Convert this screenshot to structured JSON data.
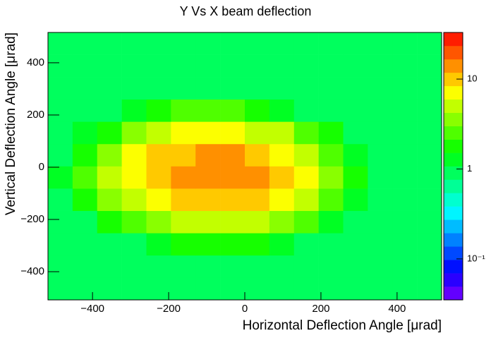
{
  "chart_data": {
    "type": "heatmap",
    "title": "Y Vs X beam deflection",
    "x_label": "Horizontal Deflection Angle [μrad]",
    "y_label": "Vertical Deflection Angle [μrad]",
    "xlim": [
      -517,
      517
    ],
    "ylim": [
      -508,
      516
    ],
    "xticks": [
      {
        "value": -400,
        "label": "−400"
      },
      {
        "value": -200,
        "label": "−200"
      },
      0,
      200,
      400
    ],
    "yticks": [
      {
        "value": -400,
        "label": "−400"
      },
      {
        "value": -200,
        "label": "−200"
      },
      0,
      200,
      400
    ],
    "zlim": [
      0.035,
      33
    ],
    "zscale": "log",
    "zticks": [
      {
        "value": 0.1,
        "label": "10⁻¹"
      },
      1,
      10
    ],
    "xbins": [
      -517,
      -452.4,
      -387.8,
      -323.1,
      -258.5,
      -193.9,
      -129.3,
      -64.6,
      0,
      64.6,
      129.3,
      193.9,
      258.5,
      323.1,
      387.8,
      452.4,
      517
    ],
    "ybins": [
      -508,
      -422.7,
      -337.3,
      -252,
      -166.7,
      -81.3,
      4,
      89.3,
      174.7,
      260,
      345.3,
      430.7,
      516
    ],
    "z": [
      [
        1,
        1,
        1,
        1,
        1,
        1,
        1,
        1,
        1,
        1,
        1,
        1,
        1,
        1,
        1,
        1
      ],
      [
        1,
        1,
        1,
        1,
        1,
        1,
        1,
        1,
        1,
        1,
        1,
        1,
        1,
        1,
        1,
        1
      ],
      [
        1,
        1,
        1,
        1,
        1.4,
        1.7,
        1.9,
        1.8,
        1.6,
        1.2,
        1,
        1,
        1,
        1,
        1,
        1
      ],
      [
        1,
        1,
        1.8,
        2.9,
        4.2,
        5.3,
        5.8,
        5.6,
        4.8,
        3.6,
        2.4,
        1.4,
        1,
        1,
        1,
        1
      ],
      [
        1,
        1.9,
        3.5,
        5.8,
        8.3,
        10.5,
        11.6,
        11.1,
        9.5,
        7.2,
        4.7,
        2.8,
        1.4,
        1,
        1,
        1
      ],
      [
        1.2,
        2.5,
        4.6,
        7.5,
        10.8,
        13.6,
        15,
        14.4,
        12.4,
        9.3,
        6.1,
        3.6,
        1.8,
        1,
        1,
        1
      ],
      [
        1,
        2.1,
        3.8,
        6.3,
        9,
        11.4,
        12.5,
        12,
        10.4,
        7.8,
        5.1,
        3,
        1.5,
        1,
        1,
        1
      ],
      [
        1,
        1.1,
        2.1,
        3.4,
        4.9,
        6.2,
        6.9,
        6.6,
        5.7,
        4.3,
        2.8,
        1.6,
        1,
        1,
        1,
        1
      ],
      [
        1,
        1,
        1,
        1.2,
        1.8,
        2.2,
        2.5,
        2.4,
        2,
        1.5,
        1,
        1,
        1,
        1,
        1,
        1
      ],
      [
        1,
        1,
        1,
        1,
        1,
        1,
        1,
        1,
        1,
        1,
        1,
        1,
        1,
        1,
        1,
        1
      ],
      [
        1,
        1,
        1,
        1,
        1,
        1,
        1,
        1,
        1,
        1,
        1,
        1,
        1,
        1,
        1,
        1
      ],
      [
        1,
        1,
        1,
        1,
        1,
        1,
        1,
        1,
        1,
        1,
        1,
        1,
        1,
        1,
        1,
        1
      ]
    ]
  }
}
